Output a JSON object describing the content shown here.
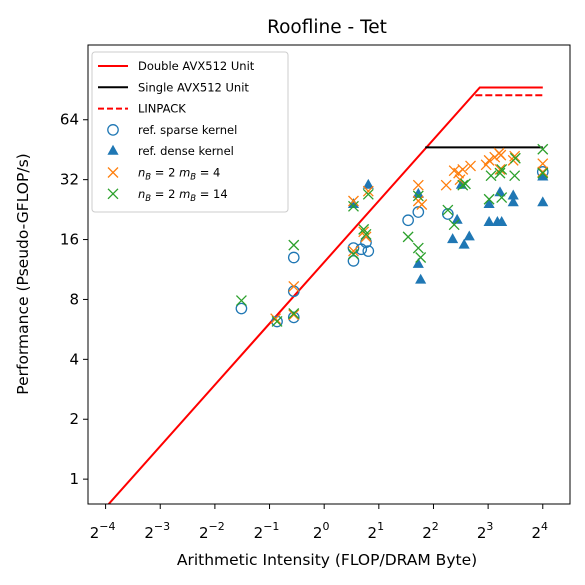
{
  "chart_data": {
    "type": "scatter",
    "title": "Roofline - Tet",
    "xlabel": "Arithmetic Intensity (FLOP/DRAM Byte)",
    "ylabel": "Performance (Pseudo-GFLOP/s)",
    "x_scale": "log2",
    "y_scale": "log2",
    "xlim": [
      0.05,
      22.6
    ],
    "ylim": [
      0.75,
      152
    ],
    "x_ticks": [
      0.0625,
      0.125,
      0.25,
      0.5,
      1,
      2,
      4,
      8,
      16
    ],
    "x_tick_base": "2",
    "x_tick_exponents": [
      "−4",
      "−3",
      "−2",
      "−1",
      "0",
      "1",
      "2",
      "3",
      "4"
    ],
    "y_ticks": [
      1,
      2,
      4,
      8,
      16,
      32,
      64
    ],
    "y_tick_labels": [
      "1",
      "2",
      "4",
      "8",
      "16",
      "32",
      "64"
    ],
    "legend_position": "upper-left",
    "legend": [
      {
        "label": "Double AVX512 Unit",
        "kind": "line",
        "color": "#ff0000",
        "dash": "solid"
      },
      {
        "label": "Single AVX512 Unit",
        "kind": "line",
        "color": "#000000",
        "dash": "solid"
      },
      {
        "label": "LINPACK",
        "kind": "line",
        "color": "#ff0000",
        "dash": "dashed"
      },
      {
        "label": "ref. sparse kernel",
        "kind": "circle",
        "color": "#1f77b4"
      },
      {
        "label": "ref. dense kernel",
        "kind": "triangle",
        "color": "#1f77b4"
      },
      {
        "label": "n_B = 2 m_B = 4",
        "kind": "cross",
        "color": "#ff7f0e",
        "math": {
          "n": "2",
          "m": "4"
        }
      },
      {
        "label": "n_B = 2 m_B = 14",
        "kind": "cross",
        "color": "#2ca02c",
        "math": {
          "n": "2",
          "m": "14"
        }
      }
    ],
    "lines": [
      {
        "name": "Double AVX512 Unit",
        "color": "#ff0000",
        "dash": "solid",
        "points": [
          [
            0.0625,
            0.72
          ],
          [
            7.2,
            93
          ],
          [
            16,
            93
          ]
        ]
      },
      {
        "name": "Single AVX512 Unit",
        "color": "#000000",
        "dash": "solid",
        "points": [
          [
            3.6,
            46.5
          ],
          [
            16,
            46.5
          ]
        ]
      },
      {
        "name": "LINPACK",
        "color": "#ff0000",
        "dash": "dashed",
        "points": [
          [
            6.8,
            85
          ],
          [
            16,
            85
          ]
        ]
      }
    ],
    "series": [
      {
        "name": "ref. sparse kernel",
        "marker": "circle",
        "color": "#1f77b4",
        "points": [
          [
            0.35,
            7.2
          ],
          [
            0.55,
            6.2
          ],
          [
            0.68,
            6.5
          ],
          [
            0.68,
            8.8
          ],
          [
            0.68,
            13.0
          ],
          [
            1.45,
            12.5
          ],
          [
            1.45,
            14.5
          ],
          [
            1.6,
            14.3
          ],
          [
            1.7,
            15.5
          ],
          [
            1.75,
            14.0
          ],
          [
            2.9,
            20.0
          ],
          [
            3.3,
            22.0
          ],
          [
            4.8,
            21.5
          ],
          [
            16.0,
            35.0
          ]
        ]
      },
      {
        "name": "ref. dense kernel",
        "marker": "triangle",
        "color": "#1f77b4",
        "points": [
          [
            1.45,
            24.0
          ],
          [
            1.75,
            30.0
          ],
          [
            3.3,
            27.0
          ],
          [
            3.3,
            12.0
          ],
          [
            3.4,
            10.0
          ],
          [
            5.1,
            16.0
          ],
          [
            5.4,
            20.0
          ],
          [
            5.9,
            15.0
          ],
          [
            6.3,
            16.5
          ],
          [
            5.7,
            30.0
          ],
          [
            8.1,
            24.0
          ],
          [
            8.1,
            19.5
          ],
          [
            9.0,
            19.5
          ],
          [
            9.5,
            19.5
          ],
          [
            9.3,
            27.5
          ],
          [
            11.0,
            26.5
          ],
          [
            11.0,
            24.5
          ],
          [
            16.0,
            24.5
          ],
          [
            16.0,
            33.0
          ]
        ]
      },
      {
        "name": "n_B = 2 m_B = 4",
        "marker": "cross",
        "color": "#ff7f0e",
        "points": [
          [
            0.54,
            6.4
          ],
          [
            0.68,
            9.3
          ],
          [
            0.68,
            6.7
          ],
          [
            1.45,
            14.0
          ],
          [
            1.45,
            25.0
          ],
          [
            1.65,
            17.5
          ],
          [
            1.7,
            16.5
          ],
          [
            1.75,
            28.0
          ],
          [
            3.3,
            30.0
          ],
          [
            3.3,
            25.0
          ],
          [
            3.45,
            24.0
          ],
          [
            4.7,
            30.0
          ],
          [
            5.2,
            35.5
          ],
          [
            5.5,
            34.5
          ],
          [
            5.8,
            36.0
          ],
          [
            5.6,
            32.0
          ],
          [
            6.4,
            37.5
          ],
          [
            7.8,
            38.0
          ],
          [
            8.1,
            40.0
          ],
          [
            8.7,
            41.5
          ],
          [
            9.2,
            43.5
          ],
          [
            9.4,
            42.5
          ],
          [
            9.3,
            36.0
          ],
          [
            11.0,
            40.0
          ],
          [
            11.2,
            42.0
          ],
          [
            16.0,
            38.5
          ],
          [
            16.0,
            35.0
          ]
        ]
      },
      {
        "name": "n_B = 2 m_B = 14",
        "marker": "cross",
        "color": "#2ca02c",
        "points": [
          [
            0.35,
            7.9
          ],
          [
            0.55,
            6.2
          ],
          [
            0.68,
            15.0
          ],
          [
            0.68,
            6.8
          ],
          [
            1.45,
            23.5
          ],
          [
            1.45,
            13.5
          ],
          [
            1.65,
            18.0
          ],
          [
            1.7,
            17.0
          ],
          [
            1.75,
            27.0
          ],
          [
            2.9,
            16.5
          ],
          [
            3.3,
            26.5
          ],
          [
            3.3,
            14.5
          ],
          [
            3.4,
            13.0
          ],
          [
            4.8,
            22.5
          ],
          [
            5.2,
            19.0
          ],
          [
            5.8,
            30.0
          ],
          [
            6.0,
            30.5
          ],
          [
            8.1,
            25.5
          ],
          [
            8.3,
            33.5
          ],
          [
            9.3,
            34.5
          ],
          [
            9.5,
            36.0
          ],
          [
            9.5,
            26.0
          ],
          [
            11.2,
            33.5
          ],
          [
            11.3,
            41.0
          ],
          [
            16.0,
            45.5
          ],
          [
            16.0,
            34.5
          ]
        ]
      }
    ]
  }
}
